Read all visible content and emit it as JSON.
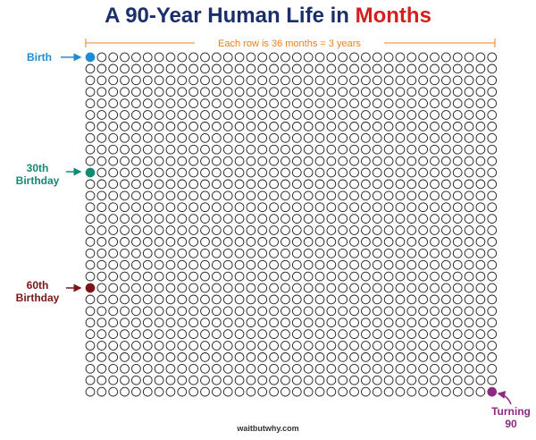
{
  "title": {
    "prefix": "A 90-Year Human Life in ",
    "accent": "Months"
  },
  "caption": "Each row is 36 months = 3 years",
  "grid": {
    "columns": 36,
    "rows": 30
  },
  "markers": {
    "birth": {
      "label": "Birth",
      "row": 0,
      "col": 0,
      "color": "#1f8dd6"
    },
    "thirtieth": {
      "label_line1": "30th",
      "label_line2": "Birthday",
      "row": 10,
      "col": 0,
      "color": "#138a76"
    },
    "sixtieth": {
      "label_line1": "60th",
      "label_line2": "Birthday",
      "row": 20,
      "col": 0,
      "color": "#7c1518"
    },
    "ninety": {
      "label_line1": "Turning",
      "label_line2": "90",
      "row": 29,
      "col": 35,
      "color": "#8e2a83"
    }
  },
  "colors": {
    "title": "#1a2f6b",
    "accent": "#d2201f",
    "caption": "#e8801f",
    "circle_stroke": "#222222"
  },
  "footer": "waitbutwhy.com"
}
